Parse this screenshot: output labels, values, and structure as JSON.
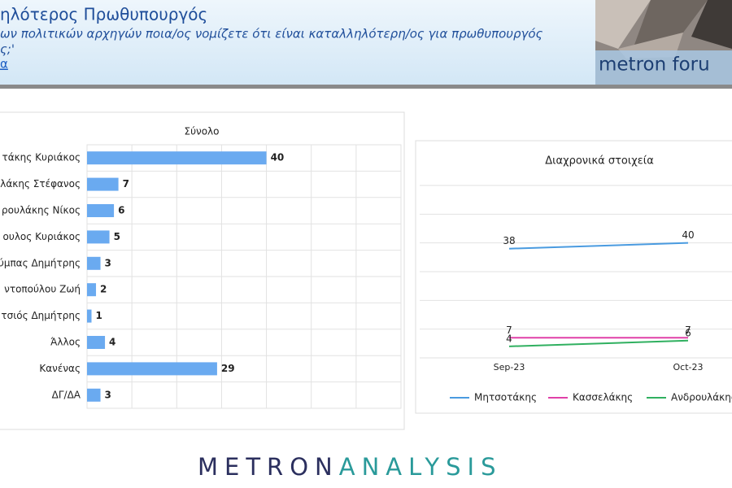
{
  "header": {
    "title": "ηλότερος Πρωθυπουργός",
    "question": "ων πολιτικών αρχηγών ποια/ος νομίζετε ότι είναι καταλληλότερη/ος για πρωθυπουργός",
    "question_end": "ς;'",
    "link": "α",
    "logo": "metron foru"
  },
  "footer": {
    "brand_1": "METRON",
    "brand_2": "ANALYSIS"
  },
  "chart_data": [
    {
      "type": "barh",
      "title": "Σύνολο",
      "categories": [
        "τάκης Κυριάκος",
        "λάκης Στέφανος",
        "ρουλάκης Νίκος",
        "ουλος Κυριάκος",
        "ύμπας Δημήτρης",
        "ντοπούλου Ζωή",
        "τσιός Δημήτρης",
        "Άλλος",
        "Κανένας",
        "ΔΓ/ΔΑ"
      ],
      "values": [
        40,
        7,
        6,
        5,
        3,
        2,
        1,
        4,
        29,
        3
      ],
      "color": "#6aaaf0",
      "xlim": [
        0,
        70
      ],
      "grid": true
    },
    {
      "type": "line",
      "title": "Διαχρονικά στοιχεία",
      "x": [
        "Sep-23",
        "Oct-23"
      ],
      "series": [
        {
          "name": "Μητσοτάκης",
          "color": "#4a9be0",
          "values": [
            38,
            40
          ]
        },
        {
          "name": "Κασσελάκης",
          "color": "#e040a8",
          "values": [
            7,
            7
          ]
        },
        {
          "name": "Ανδρουλάκης",
          "color": "#30b060",
          "values": [
            4,
            6
          ]
        }
      ],
      "ylim": [
        0,
        60
      ],
      "grid": true,
      "legend": "bottom"
    }
  ]
}
